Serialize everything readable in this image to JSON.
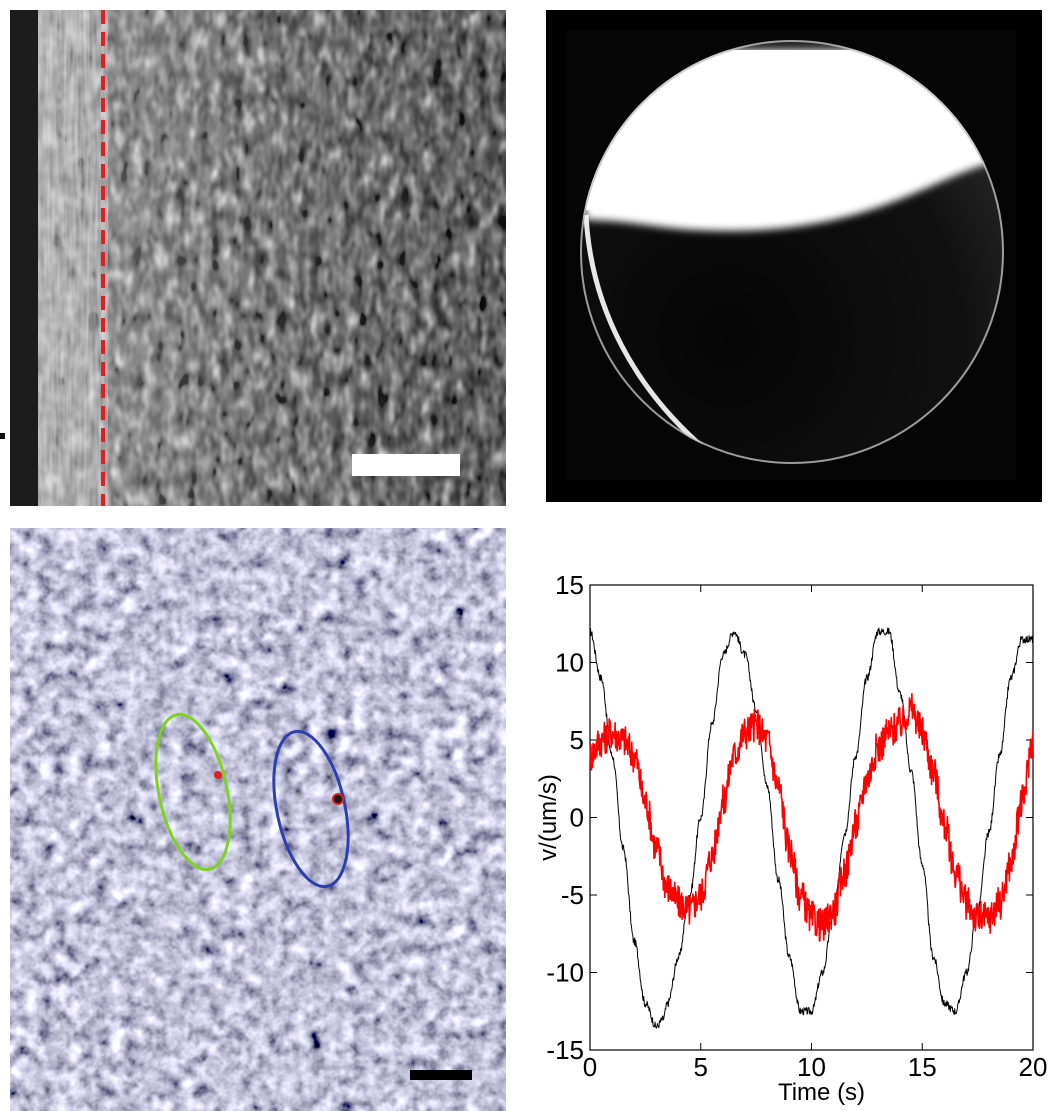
{
  "figure": {
    "panel_a": {
      "description_icon": "striped-microscopy-texture",
      "boundary_line_color": "#e02020",
      "scale_bar_color": "#ffffff"
    },
    "panel_b": {
      "description_icon": "illuminated-sphere"
    },
    "panel_c": {
      "description_icon": "granular-microscopy-texture",
      "ellipse_colors": [
        "#7ed321",
        "#2c3fb0"
      ],
      "marker_color": "#e02020",
      "scale_bar_color": "#000000"
    }
  },
  "chart_data": {
    "type": "line",
    "title": "",
    "xlabel": "Time (s)",
    "ylabel": "v/(um/s)",
    "xlim": [
      0,
      20
    ],
    "ylim": [
      -15,
      15
    ],
    "xticks": [
      0,
      5,
      10,
      15,
      20
    ],
    "yticks": [
      -15,
      -10,
      -5,
      0,
      5,
      10,
      15
    ],
    "grid": false,
    "series": [
      {
        "color": "#000000",
        "x": [
          0,
          0.5,
          1,
          1.5,
          2,
          2.5,
          3,
          3.3,
          3.5,
          4,
          4.5,
          5,
          5.5,
          6,
          6.5,
          7,
          7.5,
          8,
          8.5,
          9,
          9.5,
          10,
          10.5,
          11,
          11.5,
          12,
          12.5,
          13,
          13.5,
          14,
          14.5,
          15,
          15.5,
          16,
          16.5,
          17,
          17.5,
          18,
          18.5,
          19,
          19.5,
          20
        ],
        "values": [
          12,
          9,
          4,
          -2,
          -8,
          -12,
          -13.5,
          -13,
          -12,
          -9,
          -5,
          0,
          6,
          10.5,
          12,
          10.5,
          7,
          2,
          -4,
          -9,
          -12.5,
          -12.5,
          -10,
          -6,
          -1,
          4,
          9,
          12,
          12,
          8,
          3,
          -3,
          -9,
          -12,
          -12.5,
          -10,
          -6,
          -1,
          4,
          9,
          11.5,
          11.5
        ]
      },
      {
        "color": "#ff0000",
        "x": [
          0,
          0.5,
          1,
          1.5,
          2,
          2.5,
          3,
          3.5,
          4,
          4.5,
          5,
          5.5,
          6,
          6.5,
          7,
          7.5,
          8,
          8.5,
          9,
          9.5,
          10,
          10.5,
          11,
          11.5,
          12,
          12.5,
          13,
          13.5,
          14,
          14.5,
          15,
          15.5,
          16,
          16.5,
          17,
          17.5,
          18,
          18.5,
          19,
          19.5,
          20
        ],
        "values": [
          4,
          5,
          5.5,
          5,
          4,
          1,
          -2,
          -4.5,
          -5.5,
          -6,
          -5,
          -2.5,
          1,
          4,
          5.5,
          6,
          5,
          2,
          -2,
          -5,
          -6.5,
          -7,
          -6,
          -3.5,
          -0.5,
          2.5,
          4.5,
          5.5,
          6,
          7,
          5.5,
          3,
          -0.5,
          -3.5,
          -5.5,
          -6.5,
          -6.5,
          -5.5,
          -3,
          1,
          5
        ]
      }
    ]
  }
}
